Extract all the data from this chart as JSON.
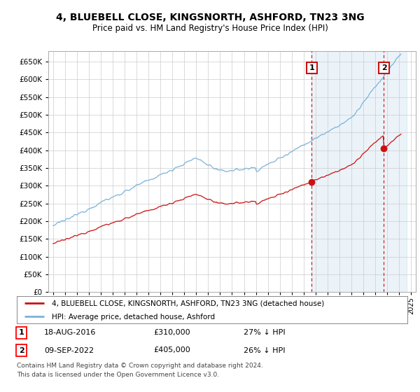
{
  "title": "4, BLUEBELL CLOSE, KINGSNORTH, ASHFORD, TN23 3NG",
  "subtitle": "Price paid vs. HM Land Registry's House Price Index (HPI)",
  "title_fontsize": 10,
  "subtitle_fontsize": 8.5,
  "hpi_color": "#7ab3d9",
  "price_color": "#cc1111",
  "dashed_color": "#cc1111",
  "fill_color": "#ddeeff",
  "ylim": [
    0,
    680000
  ],
  "yticks": [
    0,
    50000,
    100000,
    150000,
    200000,
    250000,
    300000,
    350000,
    400000,
    450000,
    500000,
    550000,
    600000,
    650000
  ],
  "sale1_date_num": 2016.63,
  "sale1_price": 310000,
  "sale1_label": "1",
  "sale2_date_num": 2022.69,
  "sale2_price": 405000,
  "sale2_label": "2",
  "legend_line1": "4, BLUEBELL CLOSE, KINGSNORTH, ASHFORD, TN23 3NG (detached house)",
  "legend_line2": "HPI: Average price, detached house, Ashford",
  "table_row1": [
    "1",
    "18-AUG-2016",
    "£310,000",
    "27% ↓ HPI"
  ],
  "table_row2": [
    "2",
    "09-SEP-2022",
    "£405,000",
    "26% ↓ HPI"
  ],
  "footnote": "Contains HM Land Registry data © Crown copyright and database right 2024.\nThis data is licensed under the Open Government Licence v3.0.",
  "background_color": "#ffffff",
  "grid_color": "#cccccc"
}
